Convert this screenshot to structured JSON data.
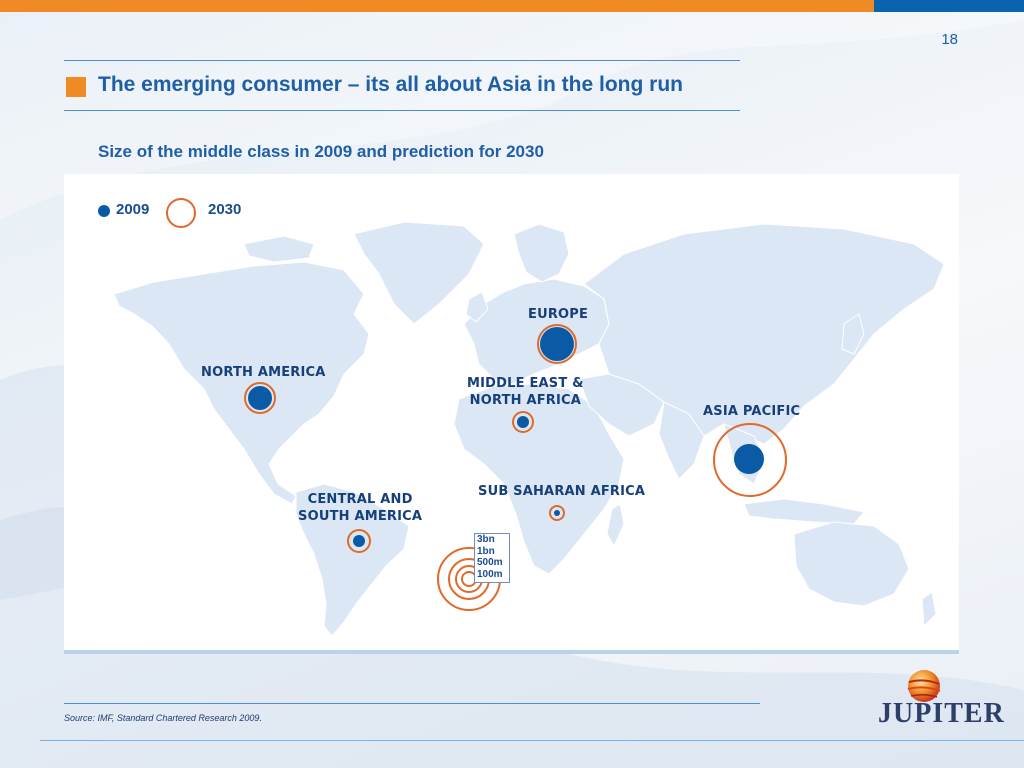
{
  "page_number": "18",
  "title": "The emerging consumer – its all about Asia in the long run",
  "subtitle": "Size of the middle class in 2009 and prediction for 2030",
  "legend": {
    "label_2009": "2009",
    "label_2030": "2030"
  },
  "regions": [
    {
      "id": "north-america",
      "label_lines": [
        "NORTH AMERICA"
      ],
      "size_2009": "large",
      "size_2030": "medium"
    },
    {
      "id": "europe",
      "label_lines": [
        "EUROPE"
      ],
      "size_2009": "largest",
      "size_2030": "large"
    },
    {
      "id": "middle-east-north-africa",
      "label_lines": [
        "MIDDLE EAST &",
        "NORTH AFRICA"
      ],
      "size_2009": "small",
      "size_2030": "small"
    },
    {
      "id": "asia-pacific",
      "label_lines": [
        "ASIA PACIFIC"
      ],
      "size_2009": "large",
      "size_2030": "largest"
    },
    {
      "id": "sub-saharan-africa",
      "label_lines": [
        "SUB SAHARAN AFRICA"
      ],
      "size_2009": "tiny",
      "size_2030": "small"
    },
    {
      "id": "central-south-america",
      "label_lines": [
        "CENTRAL AND",
        "SOUTH AMERICA"
      ],
      "size_2009": "small",
      "size_2030": "small"
    }
  ],
  "scale": {
    "labels": [
      "3bn",
      "1bn",
      "500m",
      "100m"
    ]
  },
  "source": "Source: IMF, Standard Chartered Research 2009.",
  "logo": {
    "text": "JUPITER"
  },
  "colors": {
    "accent_orange": "#f08a24",
    "brand_blue": "#0a63ad",
    "title_blue": "#1e5fa8",
    "dot_2009": "#0b5aa5",
    "ring_2030": "#e06a2a",
    "land": "#dbe7f4"
  }
}
